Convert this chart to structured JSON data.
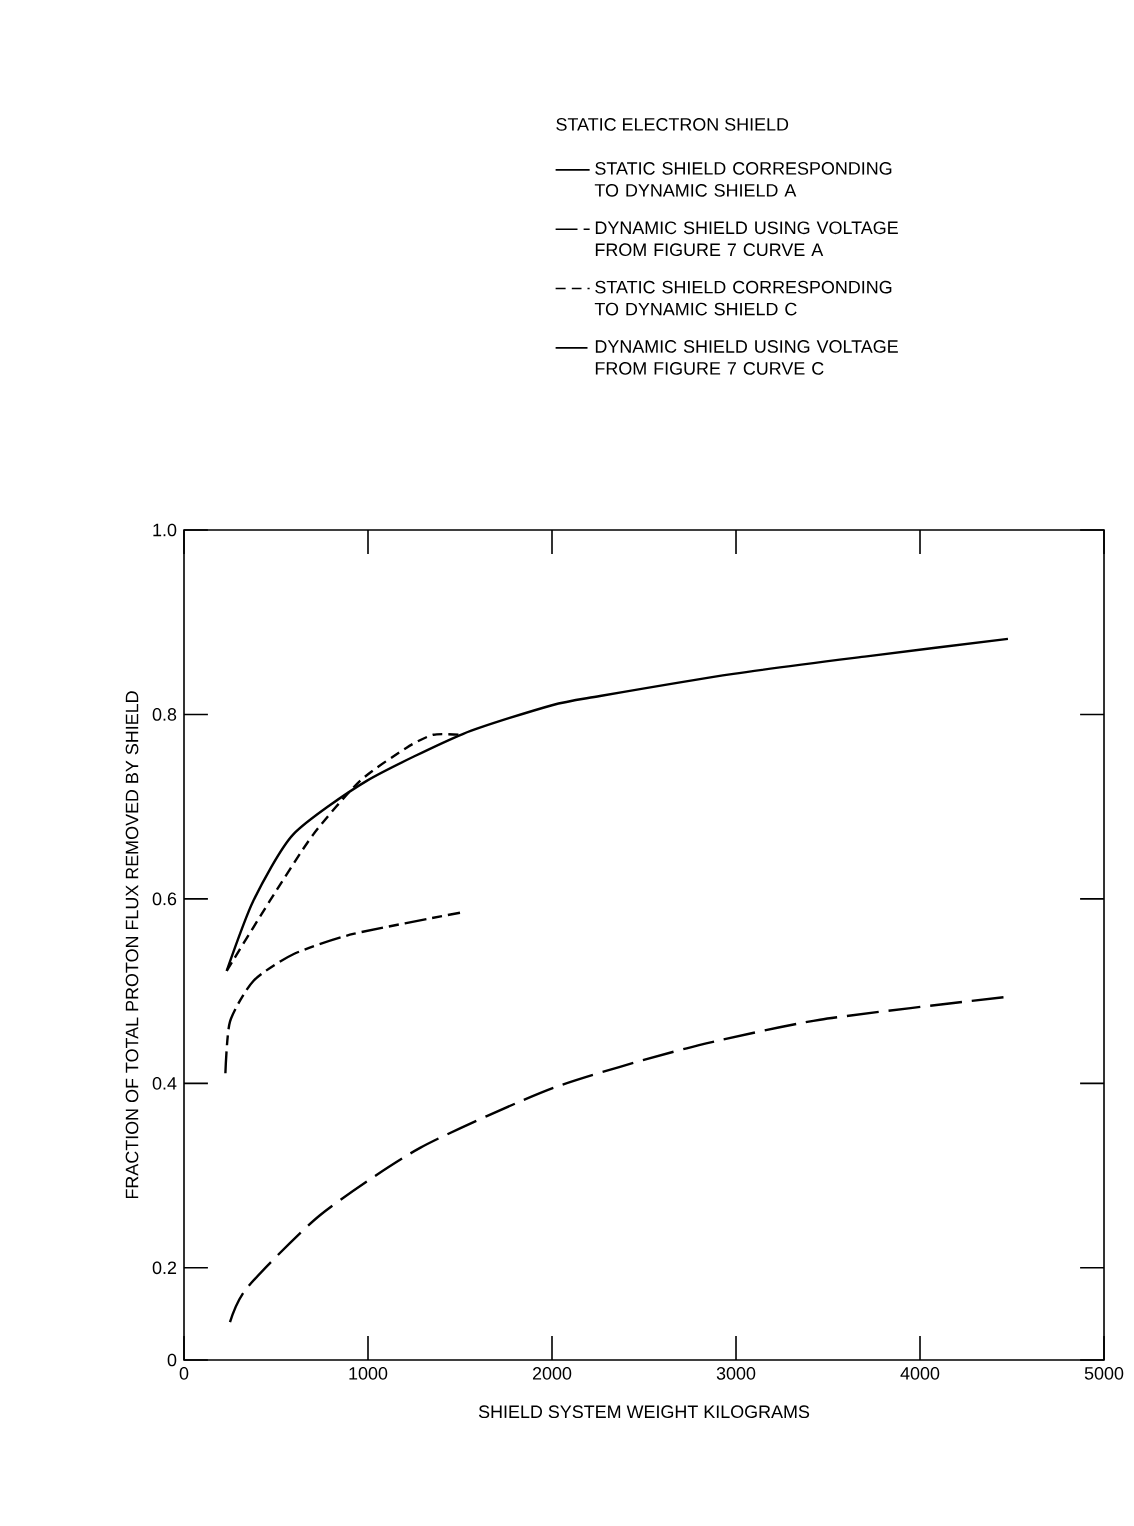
{
  "chart_data": {
    "type": "line",
    "legend_title": "STATIC ELECTRON SHIELD",
    "xlabel": "SHIELD SYSTEM WEIGHT    KILOGRAMS",
    "ylabel": "FRACTION OF TOTAL PROTON FLUX REMOVED BY SHIELD",
    "xlim": [
      0,
      5000
    ],
    "ylim": [
      0.1,
      1.0
    ],
    "xticks": [
      0,
      1000,
      2000,
      3000,
      4000,
      5000
    ],
    "yticks": [
      {
        "value": 0.1,
        "label": "0"
      },
      {
        "value": 0.2,
        "label": "0.2"
      },
      {
        "value": 0.4,
        "label": "0.4"
      },
      {
        "value": 0.6,
        "label": "0.6"
      },
      {
        "value": 0.8,
        "label": "0.8"
      },
      {
        "value": 1.0,
        "label": "1.0"
      }
    ],
    "legend": "top",
    "grid": false,
    "marker": "none",
    "series": [
      {
        "name": "STATIC SHIELD CORRESPONDING TO DYNAMIC SHIELD A",
        "color": "#000000",
        "line_style": "solid",
        "x": [
          232,
          377,
          594,
          993,
          1518,
          2000,
          2261,
          2986,
          3710,
          4478
        ],
        "values": [
          0.522,
          0.598,
          0.67,
          0.728,
          0.779,
          0.81,
          0.82,
          0.844,
          0.863,
          0.882
        ]
      },
      {
        "name": "DYNAMIC SHIELD USING VOLTAGE FROM FIGURE 7  CURVE A",
        "color": "#000000",
        "line_style": "dashed",
        "x": [
          225,
          250,
          377,
          594,
          920,
          1500
        ],
        "values": [
          0.411,
          0.467,
          0.511,
          0.54,
          0.562,
          0.585
        ]
      },
      {
        "name": "STATIC SHIELD CORRESPONDING TO DYNAMIC SHIELD C",
        "color": "#000000",
        "line_style": "dashed",
        "x": [
          232,
          467,
          703,
          957,
          1210,
          1355,
          1500
        ],
        "values": [
          0.522,
          0.598,
          0.67,
          0.728,
          0.764,
          0.778,
          0.778
        ]
      },
      {
        "name": "DYNAMIC SHIELD USING VOLTAGE FROM FIGURE 7  CURVE C",
        "color": "#000000",
        "line_style": "dashed",
        "x": [
          250,
          341,
          739,
          1283,
          2007,
          2732,
          3457,
          4482
        ],
        "values": [
          0.141,
          0.178,
          0.257,
          0.33,
          0.395,
          0.438,
          0.469,
          0.494
        ]
      }
    ]
  }
}
